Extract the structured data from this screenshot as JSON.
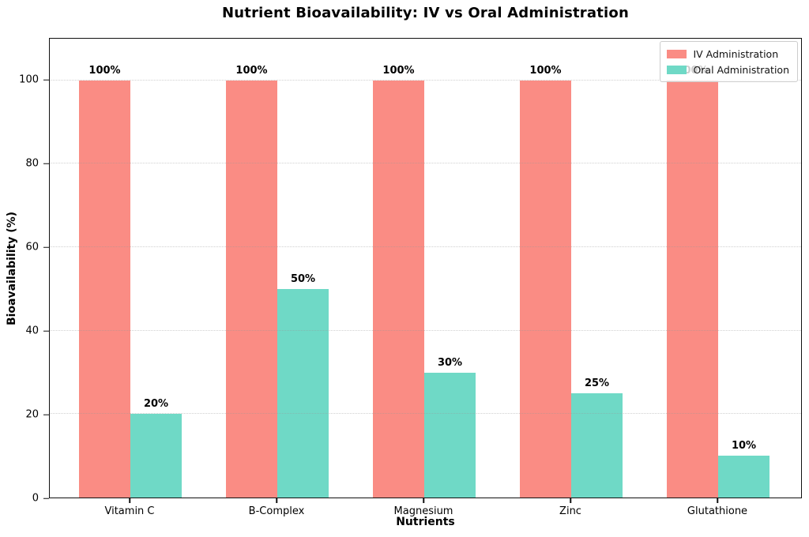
{
  "chart_data": {
    "type": "bar",
    "title": "Nutrient Bioavailability: IV vs Oral Administration",
    "xlabel": "Nutrients",
    "ylabel": "Bioavailability (%)",
    "categories": [
      "Vitamin C",
      "B-Complex",
      "Magnesium",
      "Zinc",
      "Glutathione"
    ],
    "series": [
      {
        "name": "IV Administration",
        "color": "#FA8C84",
        "values": [
          100,
          100,
          100,
          100,
          100
        ],
        "bar_labels": [
          "100%",
          "100%",
          "100%",
          "100%",
          "100%"
        ]
      },
      {
        "name": "Oral Administration",
        "color": "#6FD9C6",
        "values": [
          20,
          50,
          30,
          25,
          10
        ],
        "bar_labels": [
          "20%",
          "50%",
          "30%",
          "25%",
          "10%"
        ]
      }
    ],
    "ylim": [
      0,
      110
    ],
    "yticks": [
      0,
      20,
      40,
      60,
      80,
      100
    ],
    "grid": "horizontal-y-dotted",
    "legend_position": "upper-right",
    "frame": "full-box",
    "background": "#FFFFFF",
    "text_color": "#000000"
  }
}
